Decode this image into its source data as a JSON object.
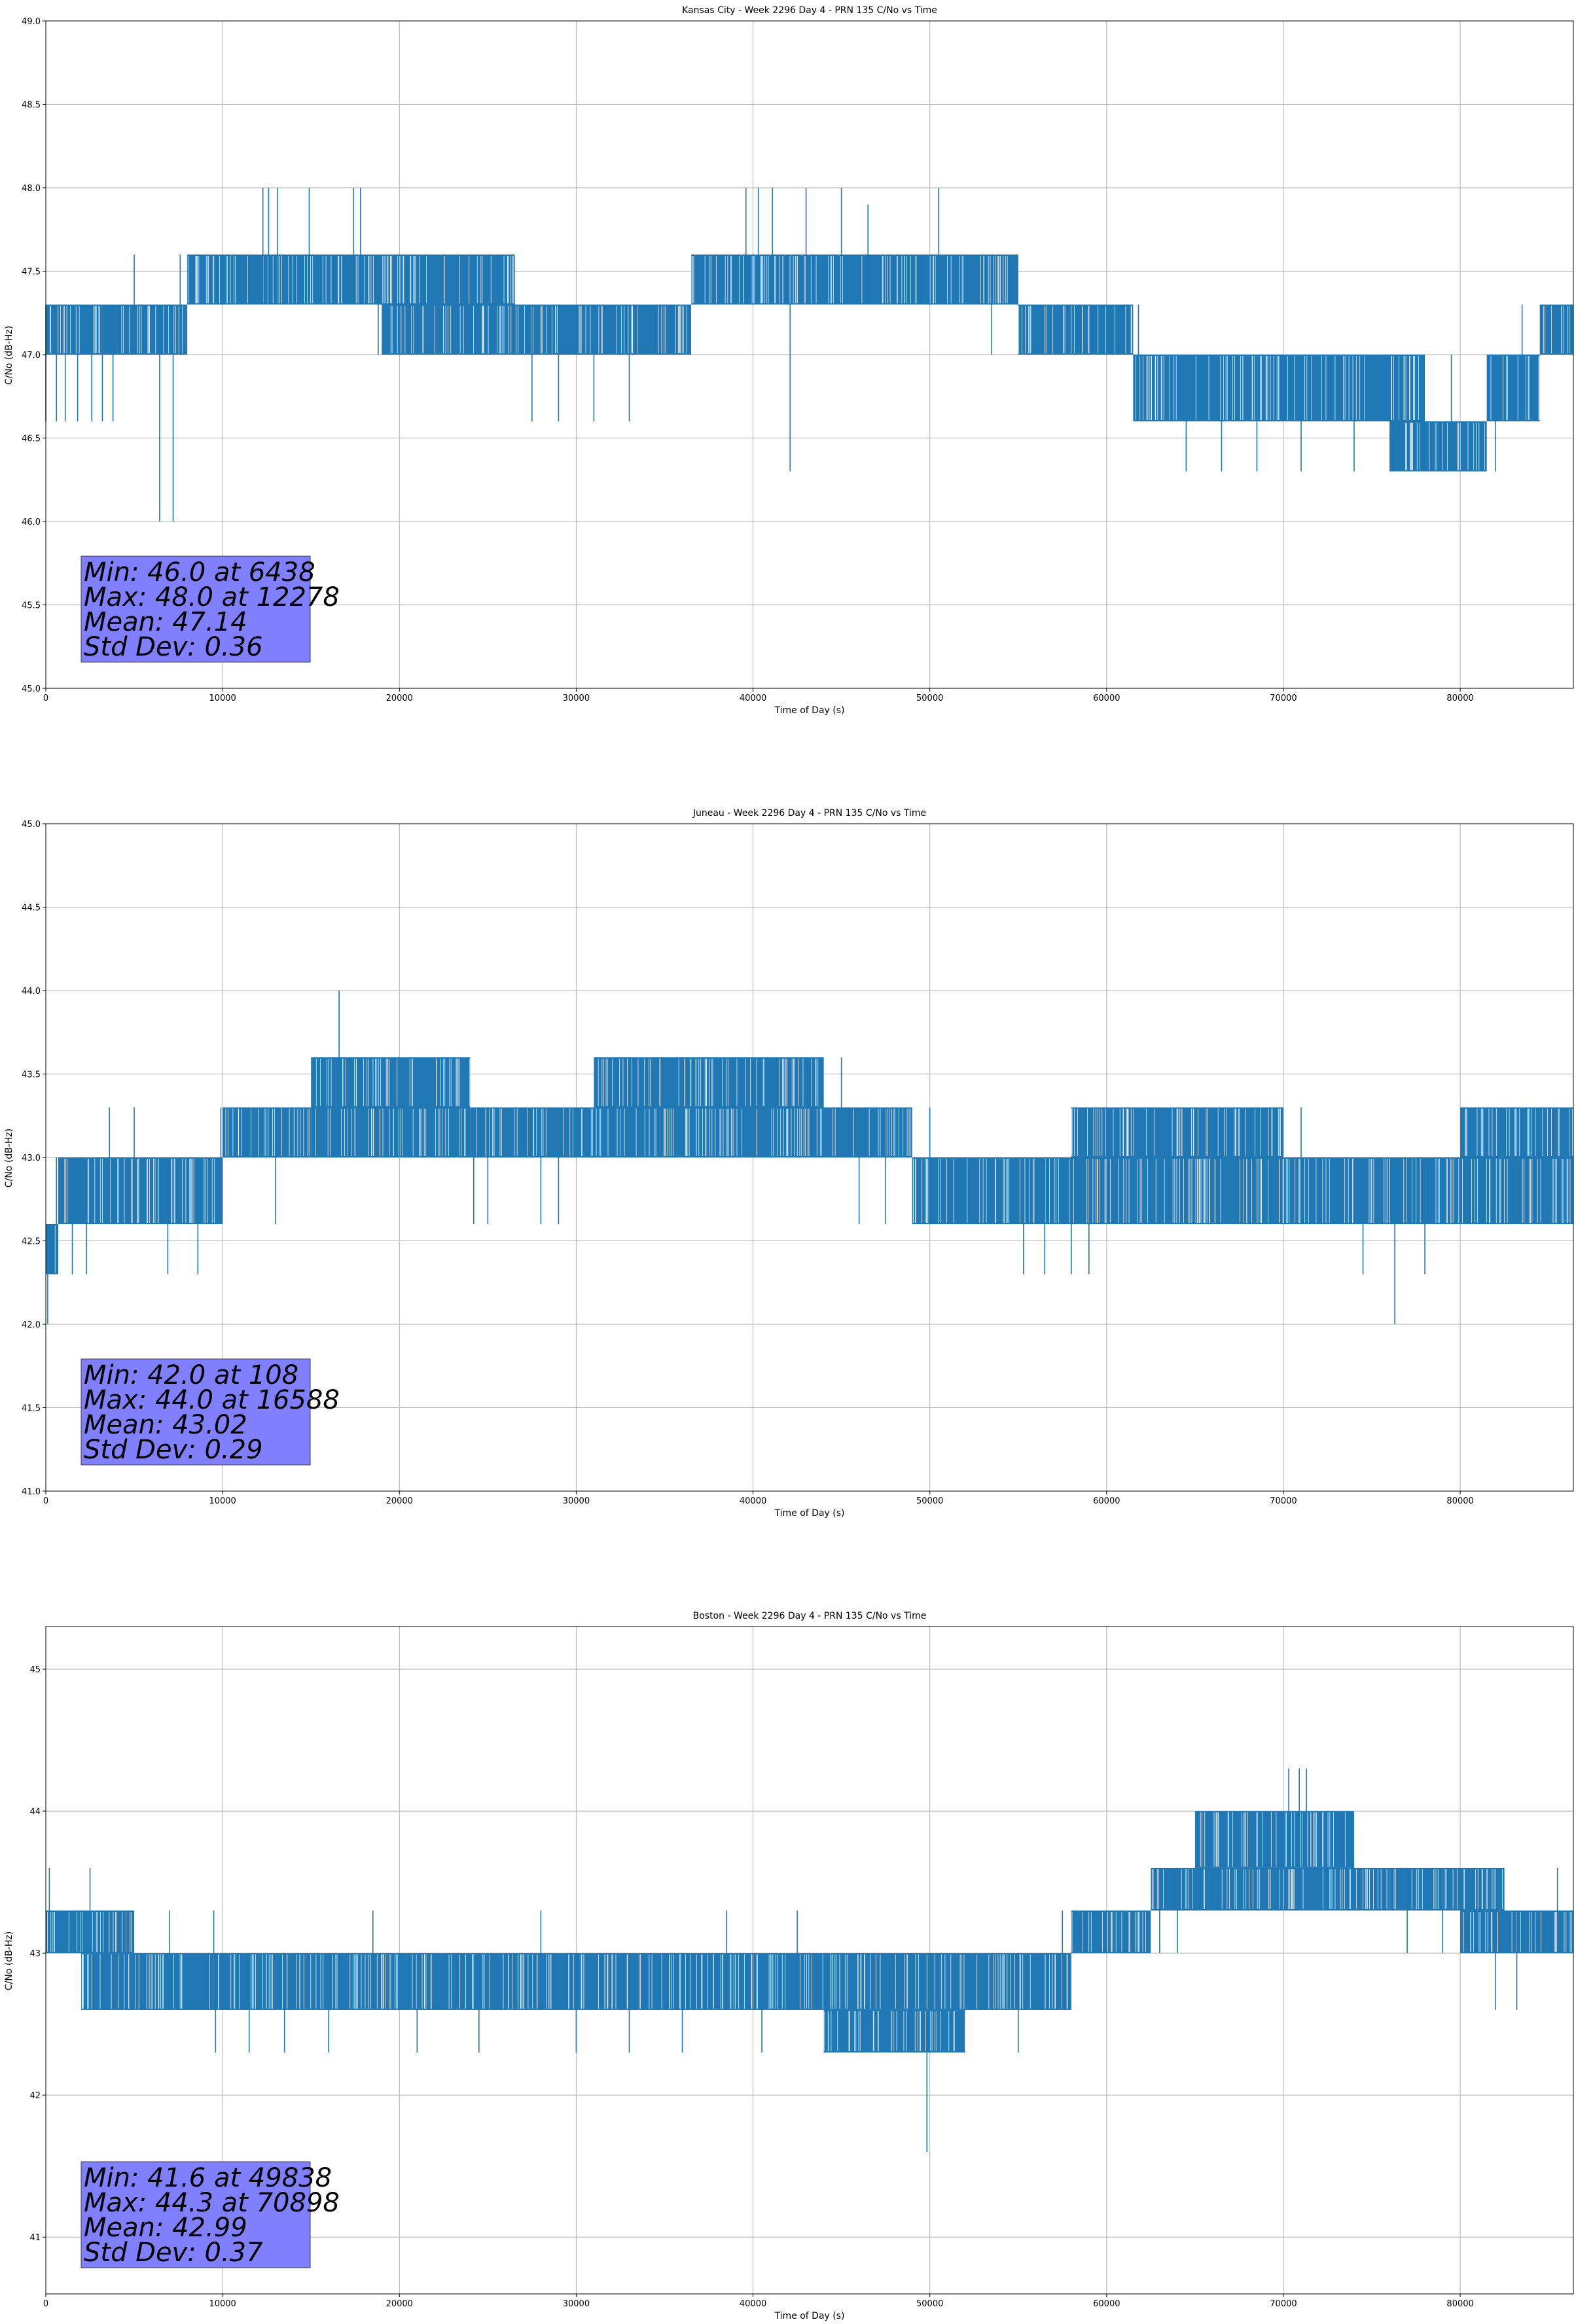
{
  "chart_data": [
    {
      "type": "line",
      "title": "Kansas City - Week 2296 Day 4 - PRN 135 C/No vs Time",
      "xlabel": "Time of Day (s)",
      "ylabel": "C/No (dB-Hz)",
      "xlim": [
        0,
        86400
      ],
      "ylim": [
        45.0,
        49.0
      ],
      "xticks": [
        0,
        10000,
        20000,
        30000,
        40000,
        50000,
        60000,
        70000,
        80000
      ],
      "yticks": [
        45.0,
        45.5,
        46.0,
        46.5,
        47.0,
        47.5,
        48.0,
        48.5,
        49.0
      ],
      "ytick_labels": [
        "45.0",
        "45.5",
        "46.0",
        "46.5",
        "47.0",
        "47.5",
        "48.0",
        "48.5",
        "49.0"
      ],
      "grid": true,
      "color": "#1f77b4",
      "series": [
        {
          "segments": [
            {
              "x0": 0,
              "x1": 4000,
              "lo": 47.0,
              "hi": 47.3
            },
            {
              "x0": 4000,
              "x1": 8000,
              "lo": 47.0,
              "hi": 47.3
            },
            {
              "x0": 8000,
              "x1": 26500,
              "lo": 47.3,
              "hi": 47.6
            },
            {
              "x0": 19000,
              "x1": 28000,
              "lo": 47.0,
              "hi": 47.3
            },
            {
              "x0": 28000,
              "x1": 33500,
              "lo": 47.0,
              "hi": 47.3
            },
            {
              "x0": 33500,
              "x1": 36500,
              "lo": 47.0,
              "hi": 47.3
            },
            {
              "x0": 36500,
              "x1": 55000,
              "lo": 47.3,
              "hi": 47.6
            },
            {
              "x0": 55000,
              "x1": 61500,
              "lo": 47.0,
              "hi": 47.3
            },
            {
              "x0": 61500,
              "x1": 78000,
              "lo": 46.6,
              "hi": 47.0
            },
            {
              "x0": 76000,
              "x1": 81500,
              "lo": 46.3,
              "hi": 46.6
            },
            {
              "x0": 81500,
              "x1": 84500,
              "lo": 46.6,
              "hi": 47.0
            },
            {
              "x0": 84500,
              "x1": 86400,
              "lo": 47.0,
              "hi": 47.3
            }
          ],
          "spikes": [
            [
              0,
              46.6,
              47.3
            ],
            [
              600,
              46.6,
              47.3
            ],
            [
              1100,
              46.6,
              47.3
            ],
            [
              1800,
              46.6,
              47.3
            ],
            [
              2600,
              46.6,
              47.3
            ],
            [
              3200,
              46.6,
              47.3
            ],
            [
              3800,
              46.6,
              47.3
            ],
            [
              5000,
              47.0,
              47.6
            ],
            [
              6438,
              46.0,
              47.3
            ],
            [
              7200,
              46.0,
              47.3
            ],
            [
              7600,
              47.0,
              47.6
            ],
            [
              12278,
              47.3,
              48.0
            ],
            [
              12600,
              47.3,
              48.0
            ],
            [
              13100,
              47.3,
              48.0
            ],
            [
              14900,
              47.3,
              48.0
            ],
            [
              17400,
              47.3,
              48.0
            ],
            [
              17800,
              47.3,
              48.0
            ],
            [
              18800,
              47.0,
              47.6
            ],
            [
              20500,
              47.0,
              47.6
            ],
            [
              23800,
              47.0,
              47.6
            ],
            [
              26500,
              47.0,
              47.6
            ],
            [
              27500,
              46.6,
              47.3
            ],
            [
              29000,
              46.6,
              47.3
            ],
            [
              31000,
              46.6,
              47.3
            ],
            [
              33000,
              46.6,
              47.3
            ],
            [
              39600,
              47.3,
              48.0
            ],
            [
              40300,
              47.3,
              48.0
            ],
            [
              41100,
              47.3,
              48.0
            ],
            [
              42100,
              46.3,
              47.3
            ],
            [
              43000,
              47.3,
              48.0
            ],
            [
              45000,
              47.3,
              48.0
            ],
            [
              46500,
              47.3,
              47.9
            ],
            [
              50500,
              47.3,
              48.0
            ],
            [
              53500,
              47.0,
              47.6
            ],
            [
              61800,
              46.6,
              47.3
            ],
            [
              64500,
              46.3,
              47.0
            ],
            [
              66500,
              46.3,
              47.0
            ],
            [
              68500,
              46.3,
              47.0
            ],
            [
              71000,
              46.3,
              47.0
            ],
            [
              74000,
              46.3,
              47.0
            ],
            [
              79500,
              46.3,
              47.0
            ],
            [
              82000,
              46.3,
              47.0
            ],
            [
              83500,
              46.6,
              47.3
            ],
            [
              85500,
              47.0,
              47.3
            ]
          ]
        }
      ],
      "stats": [
        "Min: 46.0 at 6438",
        "Max: 48.0 at 12278",
        "Mean: 47.14",
        "Std Dev: 0.36"
      ]
    },
    {
      "type": "line",
      "title": "Juneau - Week 2296 Day 4 - PRN 135 C/No vs Time",
      "xlabel": "Time of Day (s)",
      "ylabel": "C/No (dB-Hz)",
      "xlim": [
        0,
        86400
      ],
      "ylim": [
        41.0,
        45.0
      ],
      "xticks": [
        0,
        10000,
        20000,
        30000,
        40000,
        50000,
        60000,
        70000,
        80000
      ],
      "yticks": [
        41.0,
        41.5,
        42.0,
        42.5,
        43.0,
        43.5,
        44.0,
        44.5,
        45.0
      ],
      "ytick_labels": [
        "41.0",
        "41.5",
        "42.0",
        "42.5",
        "43.0",
        "43.5",
        "44.0",
        "44.5",
        "45.0"
      ],
      "grid": true,
      "color": "#1f77b4",
      "series": [
        {
          "segments": [
            {
              "x0": 0,
              "x1": 700,
              "lo": 42.3,
              "hi": 42.6
            },
            {
              "x0": 700,
              "x1": 10000,
              "lo": 42.6,
              "hi": 43.0
            },
            {
              "x0": 10000,
              "x1": 15000,
              "lo": 43.0,
              "hi": 43.3
            },
            {
              "x0": 15000,
              "x1": 24000,
              "lo": 43.0,
              "hi": 43.3
            },
            {
              "x0": 15000,
              "x1": 24000,
              "lo": 43.3,
              "hi": 43.6
            },
            {
              "x0": 24000,
              "x1": 49000,
              "lo": 43.0,
              "hi": 43.3
            },
            {
              "x0": 31000,
              "x1": 44000,
              "lo": 43.3,
              "hi": 43.6
            },
            {
              "x0": 49000,
              "x1": 86400,
              "lo": 42.6,
              "hi": 43.0
            },
            {
              "x0": 58000,
              "x1": 70000,
              "lo": 43.0,
              "hi": 43.3
            },
            {
              "x0": 80000,
              "x1": 86400,
              "lo": 43.0,
              "hi": 43.3
            }
          ],
          "spikes": [
            [
              108,
              42.0,
              42.6
            ],
            [
              600,
              42.3,
              43.0
            ],
            [
              1500,
              42.3,
              43.0
            ],
            [
              2300,
              42.3,
              43.0
            ],
            [
              3600,
              42.6,
              43.3
            ],
            [
              5000,
              42.6,
              43.3
            ],
            [
              6900,
              42.3,
              43.0
            ],
            [
              8600,
              42.3,
              43.0
            ],
            [
              9900,
              42.6,
              43.3
            ],
            [
              13000,
              42.6,
              43.3
            ],
            [
              16588,
              43.3,
              44.0
            ],
            [
              19500,
              43.0,
              43.6
            ],
            [
              24200,
              42.6,
              43.3
            ],
            [
              25000,
              42.6,
              43.3
            ],
            [
              28000,
              42.6,
              43.3
            ],
            [
              29000,
              42.6,
              43.3
            ],
            [
              34000,
              43.0,
              43.6
            ],
            [
              45000,
              43.0,
              43.6
            ],
            [
              46000,
              42.6,
              43.3
            ],
            [
              47500,
              42.6,
              43.3
            ],
            [
              50000,
              42.6,
              43.3
            ],
            [
              55300,
              42.3,
              43.0
            ],
            [
              56500,
              42.3,
              43.0
            ],
            [
              58000,
              42.3,
              43.0
            ],
            [
              59000,
              42.3,
              43.0
            ],
            [
              60500,
              42.6,
              43.3
            ],
            [
              62500,
              42.6,
              43.3
            ],
            [
              67000,
              42.6,
              43.3
            ],
            [
              71000,
              42.6,
              43.3
            ],
            [
              74500,
              42.3,
              43.0
            ],
            [
              76300,
              42.0,
              42.6
            ],
            [
              78000,
              42.3,
              43.0
            ],
            [
              80500,
              42.6,
              43.3
            ],
            [
              83000,
              42.6,
              43.3
            ],
            [
              84500,
              42.6,
              43.3
            ]
          ]
        }
      ],
      "stats": [
        "Min: 42.0 at 108",
        "Max: 44.0 at 16588",
        "Mean: 43.02",
        "Std Dev: 0.29"
      ]
    },
    {
      "type": "line",
      "title": "Boston - Week 2296 Day 4 - PRN 135 C/No vs Time",
      "xlabel": "Time of Day (s)",
      "ylabel": "C/No (dB-Hz)",
      "xlim": [
        0,
        86400
      ],
      "ylim": [
        40.6,
        45.3
      ],
      "xticks": [
        0,
        10000,
        20000,
        30000,
        40000,
        50000,
        60000,
        70000,
        80000
      ],
      "yticks": [
        41,
        42,
        43,
        44,
        45
      ],
      "ytick_labels": [
        "41",
        "42",
        "43",
        "44",
        "45"
      ],
      "grid": true,
      "color": "#1f77b4",
      "series": [
        {
          "segments": [
            {
              "x0": 0,
              "x1": 5000,
              "lo": 43.0,
              "hi": 43.3
            },
            {
              "x0": 2000,
              "x1": 58000,
              "lo": 42.6,
              "hi": 43.0
            },
            {
              "x0": 44000,
              "x1": 52000,
              "lo": 42.3,
              "hi": 42.6
            },
            {
              "x0": 58000,
              "x1": 62500,
              "lo": 43.0,
              "hi": 43.3
            },
            {
              "x0": 62500,
              "x1": 76000,
              "lo": 43.3,
              "hi": 43.6
            },
            {
              "x0": 65000,
              "x1": 74000,
              "lo": 43.6,
              "hi": 44.0
            },
            {
              "x0": 76000,
              "x1": 82500,
              "lo": 43.3,
              "hi": 43.6
            },
            {
              "x0": 80000,
              "x1": 86400,
              "lo": 43.0,
              "hi": 43.3
            }
          ],
          "spikes": [
            [
              200,
              43.0,
              43.6
            ],
            [
              2500,
              43.0,
              43.6
            ],
            [
              4500,
              42.6,
              43.3
            ],
            [
              7000,
              42.6,
              43.3
            ],
            [
              9500,
              42.6,
              43.3
            ],
            [
              9600,
              42.3,
              43.0
            ],
            [
              11500,
              42.3,
              43.0
            ],
            [
              13500,
              42.3,
              43.0
            ],
            [
              16000,
              42.3,
              43.0
            ],
            [
              18500,
              42.6,
              43.3
            ],
            [
              21000,
              42.3,
              43.0
            ],
            [
              24500,
              42.3,
              43.0
            ],
            [
              28000,
              42.6,
              43.3
            ],
            [
              30000,
              42.3,
              43.0
            ],
            [
              33000,
              42.3,
              43.0
            ],
            [
              36000,
              42.3,
              43.0
            ],
            [
              38500,
              42.6,
              43.3
            ],
            [
              40500,
              42.3,
              43.0
            ],
            [
              42500,
              42.6,
              43.3
            ],
            [
              49838,
              41.6,
              42.6
            ],
            [
              51000,
              42.3,
              43.0
            ],
            [
              55000,
              42.3,
              43.0
            ],
            [
              57500,
              42.6,
              43.3
            ],
            [
              63000,
              43.0,
              43.6
            ],
            [
              64000,
              43.0,
              43.6
            ],
            [
              70300,
              43.6,
              44.3
            ],
            [
              70898,
              43.6,
              44.3
            ],
            [
              71300,
              43.6,
              44.3
            ],
            [
              76000,
              43.3,
              43.6
            ],
            [
              77000,
              43.0,
              43.6
            ],
            [
              79000,
              43.0,
              43.6
            ],
            [
              82000,
              42.6,
              43.3
            ],
            [
              83200,
              42.6,
              43.3
            ],
            [
              85500,
              43.0,
              43.6
            ]
          ]
        }
      ],
      "stats": [
        "Min: 41.6 at 49838",
        "Max: 44.3 at 70898",
        "Mean: 42.99",
        "Std Dev: 0.37"
      ]
    }
  ]
}
